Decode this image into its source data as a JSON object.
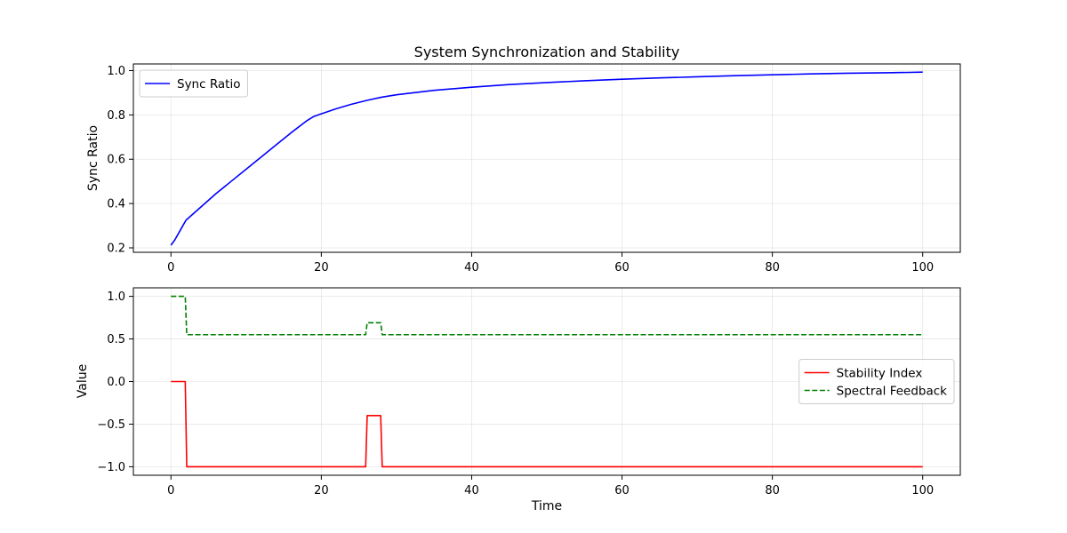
{
  "chart_data": [
    {
      "type": "line",
      "title": "System Synchronization and Stability",
      "xlabel": "",
      "ylabel": "Sync Ratio",
      "xlim": [
        -5,
        105
      ],
      "ylim": [
        0.18,
        1.03
      ],
      "xticks": [
        0,
        20,
        40,
        60,
        80,
        100
      ],
      "yticks": [
        0.2,
        0.4,
        0.6,
        0.8,
        1.0
      ],
      "ytick_labels": [
        "0.2",
        "0.4",
        "0.6",
        "0.8",
        "1.0"
      ],
      "grid": true,
      "legend_position": "upper-left",
      "series": [
        {
          "name": "Sync Ratio",
          "color": "#0000ff",
          "style": "solid",
          "x": [
            0,
            0.5,
            1,
            1.5,
            2,
            3,
            4,
            5,
            6,
            8,
            10,
            12,
            14,
            16,
            18,
            19,
            20,
            22,
            24,
            26,
            28,
            30,
            35,
            40,
            45,
            50,
            55,
            60,
            65,
            70,
            75,
            80,
            85,
            90,
            95,
            100
          ],
          "y": [
            0.212,
            0.235,
            0.265,
            0.295,
            0.325,
            0.355,
            0.385,
            0.415,
            0.445,
            0.5,
            0.555,
            0.61,
            0.665,
            0.72,
            0.772,
            0.793,
            0.805,
            0.828,
            0.848,
            0.865,
            0.88,
            0.891,
            0.911,
            0.925,
            0.937,
            0.946,
            0.954,
            0.961,
            0.967,
            0.972,
            0.977,
            0.981,
            0.985,
            0.988,
            0.99,
            0.993
          ]
        }
      ]
    },
    {
      "type": "line",
      "title": "",
      "xlabel": "Time",
      "ylabel": "Value",
      "xlim": [
        -5,
        105
      ],
      "ylim": [
        -1.1,
        1.1
      ],
      "xticks": [
        0,
        20,
        40,
        60,
        80,
        100
      ],
      "yticks": [
        -1.0,
        -0.5,
        0.0,
        0.5,
        1.0
      ],
      "ytick_labels": [
        "−1.0",
        "−0.5",
        "0.0",
        "0.5",
        "1.0"
      ],
      "grid": true,
      "legend_position": "center-right",
      "series": [
        {
          "name": "Stability Index",
          "color": "#ff0000",
          "style": "solid",
          "x": [
            0,
            1.9,
            2.1,
            25.9,
            26.1,
            27.9,
            28.1,
            100
          ],
          "y": [
            0.0,
            0.0,
            -1.0,
            -1.0,
            -0.4,
            -0.4,
            -1.0,
            -1.0
          ]
        },
        {
          "name": "Spectral Feedback",
          "color": "#008000",
          "style": "dashed",
          "x": [
            0,
            1.9,
            2.1,
            25.9,
            26.1,
            27.9,
            28.1,
            100
          ],
          "y": [
            1.0,
            1.0,
            0.55,
            0.55,
            0.69,
            0.69,
            0.55,
            0.55
          ]
        }
      ]
    }
  ]
}
